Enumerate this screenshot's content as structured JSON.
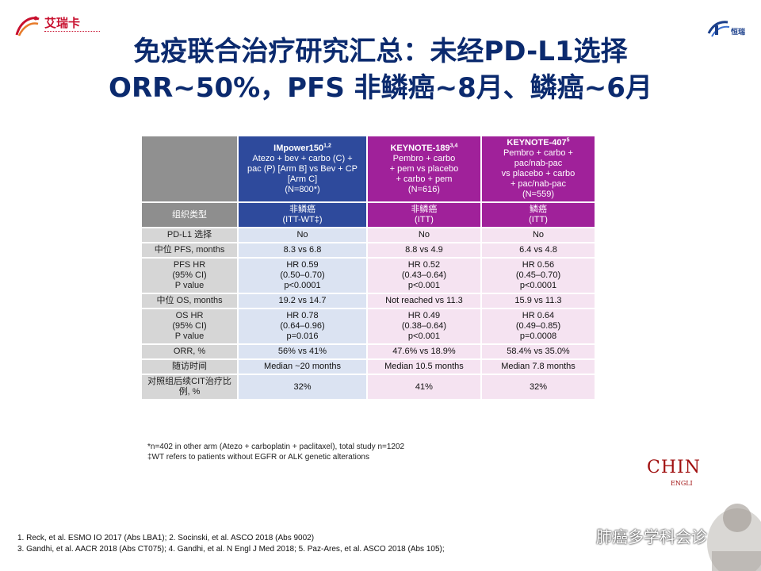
{
  "logos": {
    "left_brand": "艾瑞卡",
    "right_brand": "恒瑞"
  },
  "title": {
    "line1": "免疫联合治疗研究汇总：未经PD-L1选择",
    "line2": "ORR~50%，PFS 非鳞癌~8月、鳞癌~6月"
  },
  "table": {
    "trials": [
      {
        "name": "IMpower150",
        "sup": "1,2",
        "desc": "Atezo + bev + carbo (C) +\npac (P) [Arm B] vs Bev + CP\n[Arm C]\n(N=800*)"
      },
      {
        "name": "KEYNOTE-189",
        "sup": "3,4",
        "desc": "Pembro + carbo\n+ pem vs placebo\n+ carbo + pem\n(N=616)"
      },
      {
        "name": "KEYNOTE-407",
        "sup": "5",
        "desc": "Pembro + carbo +\npac/nab-pac\nvs placebo + carbo\n+ pac/nab-pac\n(N=559)"
      }
    ],
    "histology": {
      "label": "组织类型",
      "values": [
        "非鳞癌\n(ITT-WT‡)",
        "非鳞癌\n(ITT)",
        "鳞癌\n(ITT)"
      ]
    },
    "rows": [
      {
        "label": "PD-L1 选择",
        "values": [
          "No",
          "No",
          "No"
        ]
      },
      {
        "label": "中位 PFS, months",
        "values": [
          "8.3 vs 6.8",
          "8.8 vs 4.9",
          "6.4 vs 4.8"
        ]
      },
      {
        "label": "PFS HR\n(95% CI)\nP value",
        "values": [
          "HR 0.59\n(0.50–0.70)\np<0.0001",
          "HR 0.52\n(0.43–0.64)\np<0.001",
          "HR 0.56\n(0.45–0.70)\np<0.0001"
        ]
      },
      {
        "label": "中位 OS, months",
        "values": [
          "19.2 vs 14.7",
          "Not reached vs 11.3",
          "15.9 vs 11.3"
        ]
      },
      {
        "label": "OS HR\n(95% CI)\nP value",
        "values": [
          "HR 0.78\n(0.64–0.96)\np=0.016",
          "HR 0.49\n(0.38–0.64)\np<0.001",
          "HR 0.64\n(0.49–0.85)\np=0.0008"
        ]
      },
      {
        "label": "ORR, %",
        "values": [
          "56% vs 41%",
          "47.6% vs 18.9%",
          "58.4% vs 35.0%"
        ]
      },
      {
        "label": "随访时间",
        "values": [
          "Median ~20 months",
          "Median 10.5 months",
          "Median 7.8 months"
        ]
      },
      {
        "label": "对照组后续CIT治疗比\n例, %",
        "values": [
          "32%",
          "41%",
          "32%"
        ]
      }
    ]
  },
  "footnotes": {
    "line1": "*n=402 in other arm (Atezo + carboplatin + paclitaxel), total study n=1202",
    "line2": "‡WT refers to patients without EGFR or ALK genetic alterations"
  },
  "references": {
    "line1": "1. Reck, et al. ESMO IO 2017 (Abs LBA1); 2. Socinski, et al. ASCO 2018 (Abs 9002)",
    "line2": "3. Gandhi, et al. AACR 2018 (Abs CT075); 4. Gandhi, et al. N Engl J Med 2018; 5. Paz-Ares, et al. ASCO 2018 (Abs 105);"
  },
  "decor": {
    "chin_text": "CHIN",
    "engl_text": "ENGLI",
    "watermark": "肺癌多学科会诊"
  },
  "colors": {
    "title": "#0b2a6e",
    "impower_header": "#2e4a9c",
    "keynote_header": "#a0219a",
    "impower_cell": "#dbe3f2",
    "keynote_cell": "#f5e3f1",
    "label_cell": "#d6d6d6"
  }
}
